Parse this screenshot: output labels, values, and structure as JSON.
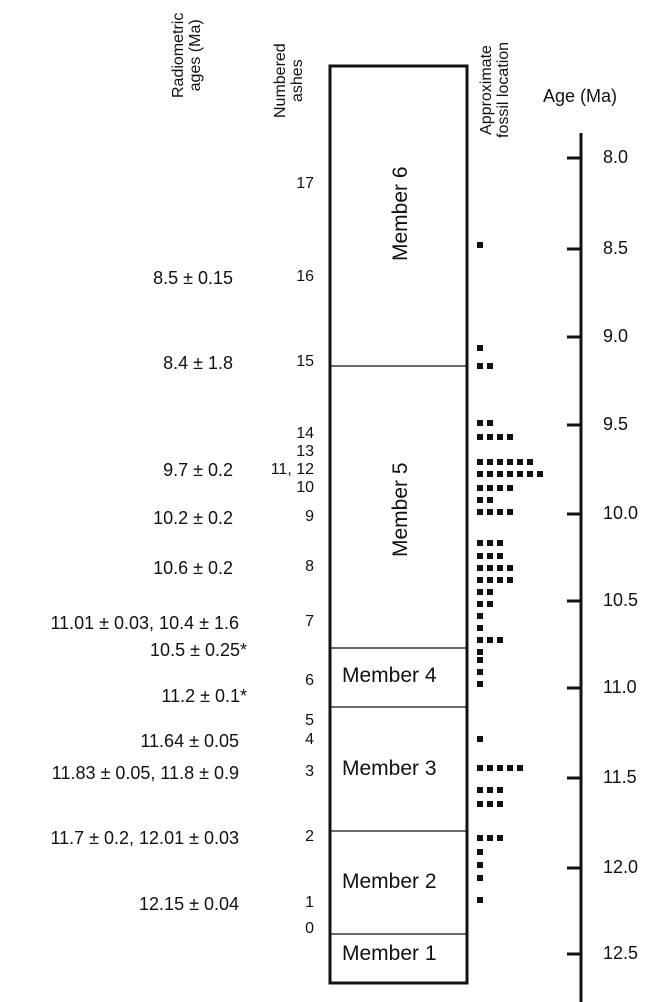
{
  "headers": {
    "radiometric_line1": "Radiometric",
    "radiometric_line2": "ages (Ma)",
    "ashes_line1": "Numbered",
    "ashes_line2": "ashes",
    "fossil_line1": "Approximate",
    "fossil_line2": "fossil location",
    "age_axis": "Age (Ma)"
  },
  "radiometric_ages": [
    "8.5 ± 0.15",
    "8.4 ± 1.8",
    "9.7 ± 0.2",
    "10.2 ± 0.2",
    "10.6 ± 0.2",
    "11.01 ± 0.03, 10.4 ± 1.6",
    "10.5 ± 0.25*",
    "11.2 ± 0.1*",
    "11.64 ± 0.05",
    "11.83 ± 0.05, 11.8 ± 0.9",
    "11.7 ± 0.2, 12.01 ± 0.03",
    "12.15 ± 0.04"
  ],
  "ashes": [
    "17",
    "16",
    "15",
    "14",
    "13",
    "11, 12",
    "10",
    "9",
    "8",
    "7",
    "6",
    "5",
    "4",
    "3",
    "2",
    "1",
    "0"
  ],
  "members": [
    "Member 6",
    "Member 5",
    "Member 4",
    "Member 3",
    "Member 2",
    "Member 1"
  ],
  "age_ticks": [
    "8.0",
    "8.5",
    "9.0",
    "9.5",
    "10.0",
    "10.5",
    "11.0",
    "11.5",
    "12.0",
    "12.5"
  ],
  "fossil_rows": [
    1,
    1,
    2,
    2,
    4,
    6,
    7,
    4,
    2,
    4,
    3,
    3,
    4,
    4,
    2,
    2,
    1,
    1,
    3,
    1,
    1,
    5,
    3,
    3,
    3,
    1
  ]
}
